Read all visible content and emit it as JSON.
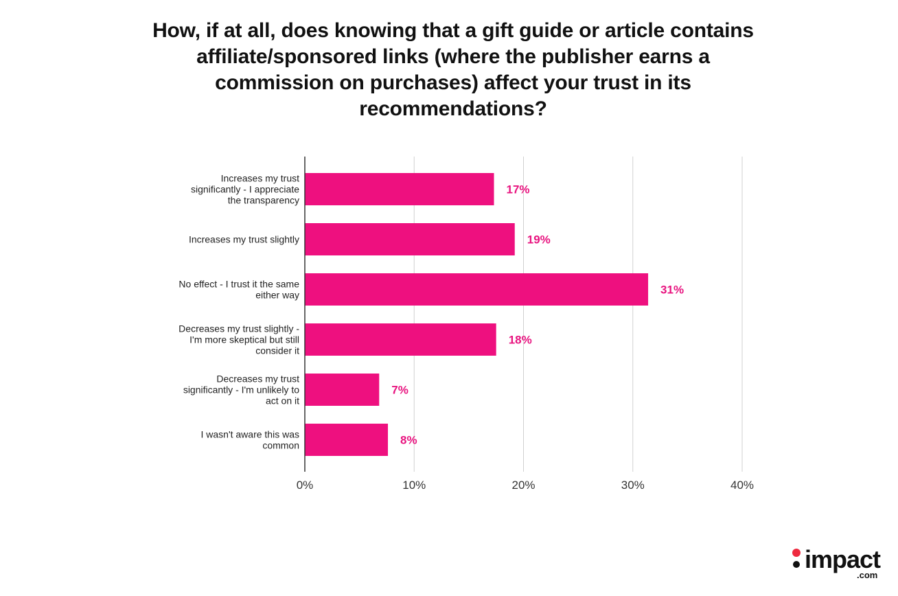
{
  "chart_data": {
    "type": "bar",
    "orientation": "horizontal",
    "title": "How, if at all, does knowing that a gift guide or article contains affiliate/sponsored links (where the publisher earns a commission on purchases) affect your trust in its recommendations?",
    "categories": [
      [
        "Increases my trust",
        "significantly -  I appreciate",
        "the transparency"
      ],
      [
        "Increases my trust slightly"
      ],
      [
        "No effect - I trust it the same",
        "either way"
      ],
      [
        "Decreases my trust slightly -",
        "I'm more skeptical but still",
        "consider it"
      ],
      [
        "Decreases my trust",
        "significantly - I'm unlikely to",
        "act on it"
      ],
      [
        "I wasn't aware this was",
        "common"
      ]
    ],
    "values": [
      17.3,
      19.2,
      31.4,
      17.5,
      6.8,
      7.6
    ],
    "data_labels": [
      "17%",
      "19%",
      "31%",
      "18%",
      "7%",
      "8%"
    ],
    "xlim": [
      0,
      40
    ],
    "x_ticks": [
      0,
      10,
      20,
      30,
      40
    ],
    "x_tick_labels": [
      "0%",
      "10%",
      "20%",
      "30%",
      "40%"
    ],
    "xlabel": "",
    "ylabel": "",
    "grid": true,
    "bar_color": "#ee107f",
    "label_color": "#e8137f",
    "grid_color": "#d0d0d0"
  },
  "brand": {
    "logo_text": "impact",
    "logo_suffix": ".com",
    "logo_colors": [
      "#ee2a3f",
      "#111111"
    ]
  }
}
